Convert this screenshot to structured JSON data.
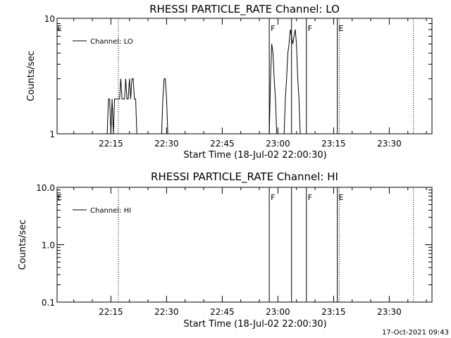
{
  "chart_data": [
    {
      "type": "line",
      "title": "RHESSI PARTICLE_RATE Channel: LO",
      "xlabel": "Start Time (18-Jul-02 22:00:30)",
      "ylabel": "Counts/sec",
      "y_scale": "log",
      "ylim": [
        1,
        10
      ],
      "xlim": [
        "22:00:30",
        "23:41:30"
      ],
      "xticks": [
        "22:15",
        "22:30",
        "22:45",
        "23:00",
        "23:15",
        "23:30"
      ],
      "yticks": [
        "1",
        "10"
      ],
      "legend": {
        "placement": "top-left",
        "entries": [
          "Channel: LO"
        ]
      },
      "series": [
        {
          "name": "Channel: LO",
          "x": [
            "22:14:00",
            "22:14:20",
            "22:14:40",
            "22:15:00",
            "22:15:20",
            "22:15:40",
            "22:16:00",
            "22:16:20",
            "22:16:40",
            "22:17:00",
            "22:17:20",
            "22:17:40",
            "22:18:00",
            "22:18:20",
            "22:18:40",
            "22:19:00",
            "22:19:20",
            "22:19:40",
            "22:20:00",
            "22:20:20",
            "22:20:40",
            "22:21:00",
            "22:21:20",
            "22:21:40",
            "22:22:00",
            "22:22:20",
            "22:22:40",
            "22:23:00",
            "22:23:20",
            "22:23:40",
            "22:24:00",
            "22:24:20",
            "22:24:40",
            "22:25:00",
            "22:25:20",
            "22:25:40",
            "22:26:00",
            "22:28:40",
            "22:29:00",
            "22:29:20",
            "22:29:40",
            "22:30:00",
            "22:30:20",
            "22:57:40",
            "22:58:00",
            "22:58:20",
            "22:58:40",
            "22:59:00",
            "22:59:20",
            "22:59:40",
            "23:00:00",
            "23:01:40",
            "23:02:00",
            "23:02:20",
            "23:02:40",
            "23:03:00",
            "23:03:20",
            "23:03:40",
            "23:04:00",
            "23:04:20",
            "23:04:40",
            "23:05:00",
            "23:05:20",
            "23:05:40",
            "23:06:00",
            "23:06:20",
            "23:06:40",
            "23:07:00",
            "23:07:20",
            "23:07:40",
            "23:08:00",
            "23:08:20",
            "23:08:40"
          ],
          "y": [
            1,
            2,
            2,
            1,
            2,
            1,
            2,
            2,
            2,
            2,
            2,
            3,
            2,
            2,
            2,
            3,
            2,
            2,
            3,
            2,
            3,
            3,
            2,
            2,
            1,
            1,
            1,
            1,
            1,
            1,
            1,
            1,
            1,
            1,
            1,
            1,
            1,
            1,
            2,
            3,
            3,
            2,
            1,
            1,
            3,
            6,
            5,
            3,
            2,
            1,
            1,
            1,
            2,
            3,
            5,
            6,
            8,
            7,
            6,
            7,
            8,
            6,
            3,
            2,
            1,
            1,
            1,
            1,
            1,
            1,
            1,
            1,
            1
          ]
        }
      ],
      "markers": [
        {
          "time": "22:00:30",
          "label": "E"
        },
        {
          "time": "22:57:40",
          "label": "F"
        },
        {
          "time": "23:07:40",
          "label": "F"
        },
        {
          "time": "23:16:00",
          "label": "E"
        }
      ]
    },
    {
      "type": "line",
      "title": "RHESSI PARTICLE_RATE Channel: HI",
      "xlabel": "Start Time (18-Jul-02 22:00:30)",
      "ylabel": "Counts/sec",
      "y_scale": "log",
      "ylim": [
        0.1,
        10
      ],
      "xlim": [
        "22:00:30",
        "23:41:30"
      ],
      "xticks": [
        "22:15",
        "22:30",
        "22:45",
        "23:00",
        "23:15",
        "23:30"
      ],
      "yticks": [
        "0.1",
        "1.0",
        "10.0"
      ],
      "legend": {
        "placement": "top-left",
        "entries": [
          "Channel: HI"
        ]
      },
      "series": [
        {
          "name": "Channel: HI",
          "x": [],
          "y": []
        }
      ],
      "markers": [
        {
          "time": "22:00:30",
          "label": "E"
        },
        {
          "time": "22:57:40",
          "label": "F"
        },
        {
          "time": "23:07:40",
          "label": "F"
        },
        {
          "time": "23:16:00",
          "label": "E"
        }
      ]
    }
  ],
  "footer": {
    "timestamp": "17-Oct-2021 09:43"
  }
}
